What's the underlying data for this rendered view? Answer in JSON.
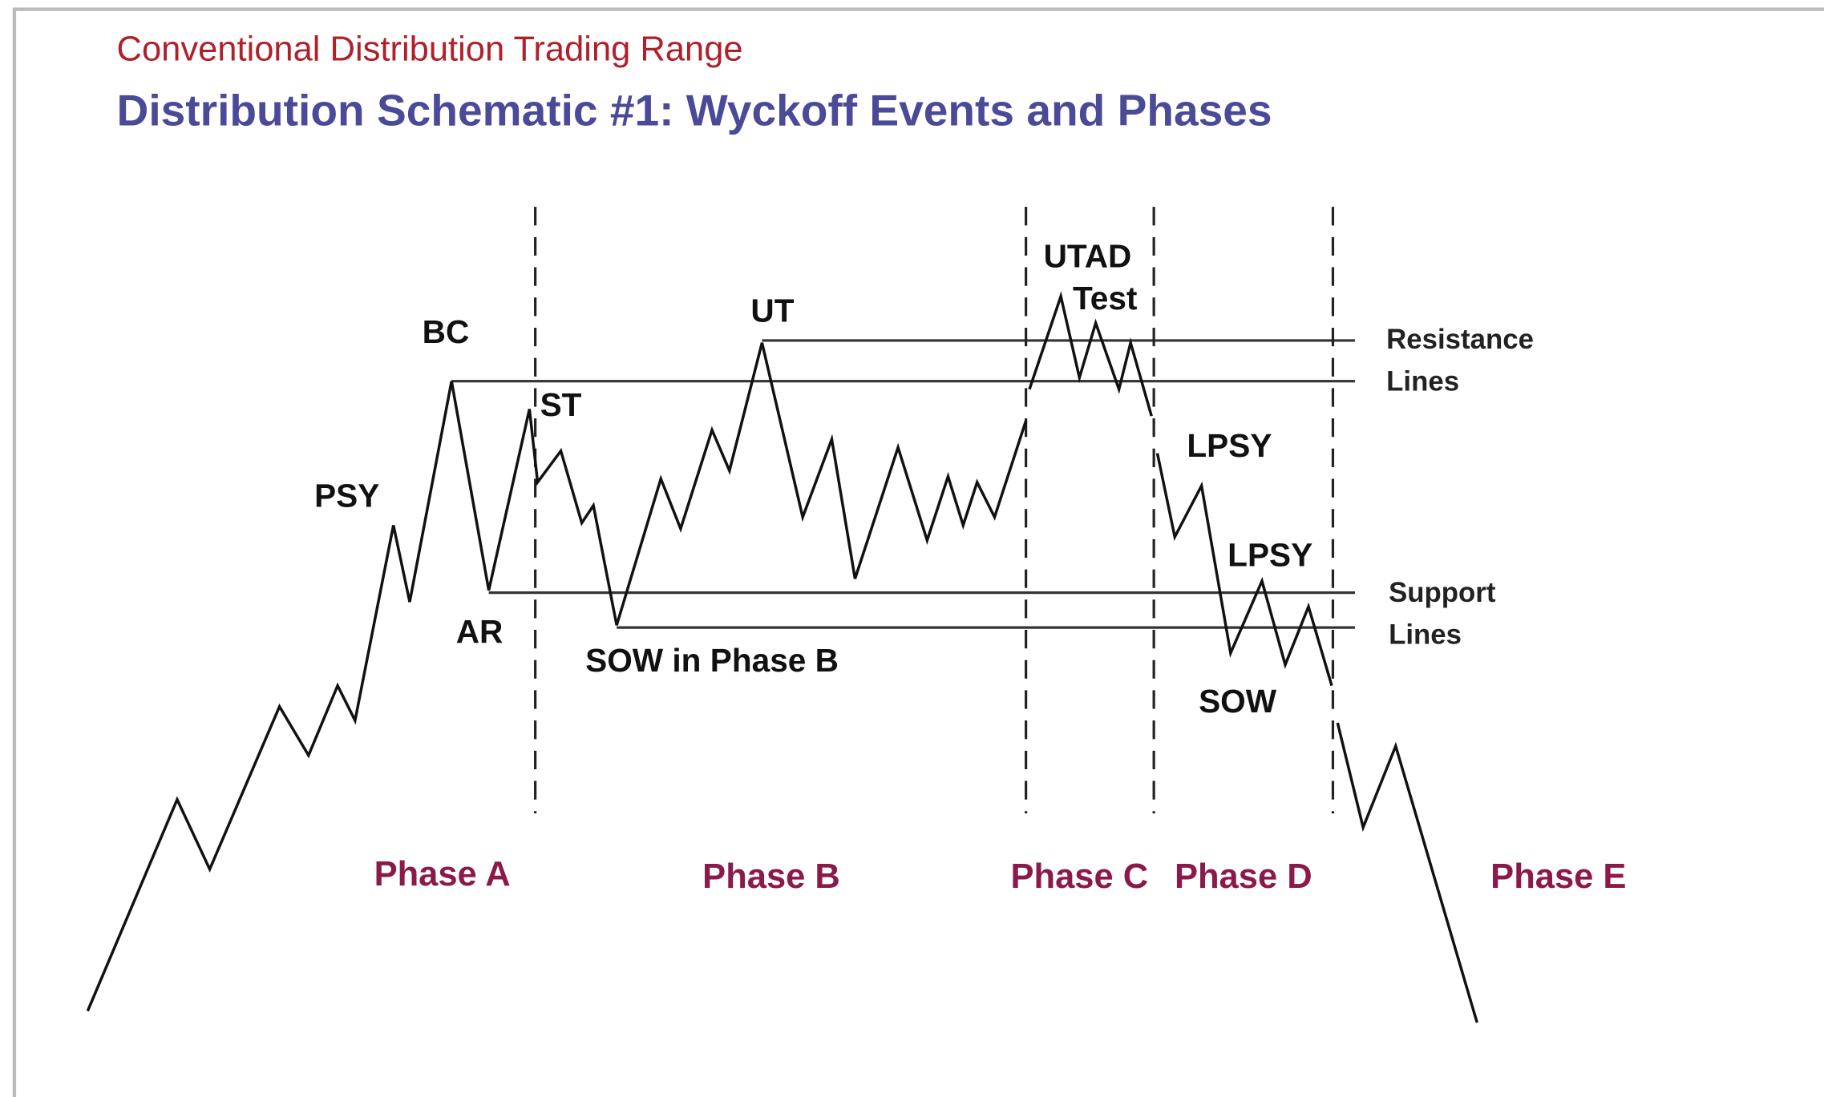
{
  "header": {
    "subtitle": "Conventional Distribution Trading Range",
    "title": "Distribution Schematic #1: Wyckoff Events and Phases"
  },
  "events": [
    "PSY",
    "BC",
    "AR",
    "ST",
    "UT",
    "SOW in Phase B",
    "UTAD",
    "Test",
    "LPSY",
    "LPSY",
    "SOW"
  ],
  "side_labels": {
    "resistance": [
      "Resistance",
      "Lines"
    ],
    "support": [
      "Support",
      "Lines"
    ]
  },
  "phases": [
    "Phase A",
    "Phase B",
    "Phase C",
    "Phase D",
    "Phase E"
  ]
}
